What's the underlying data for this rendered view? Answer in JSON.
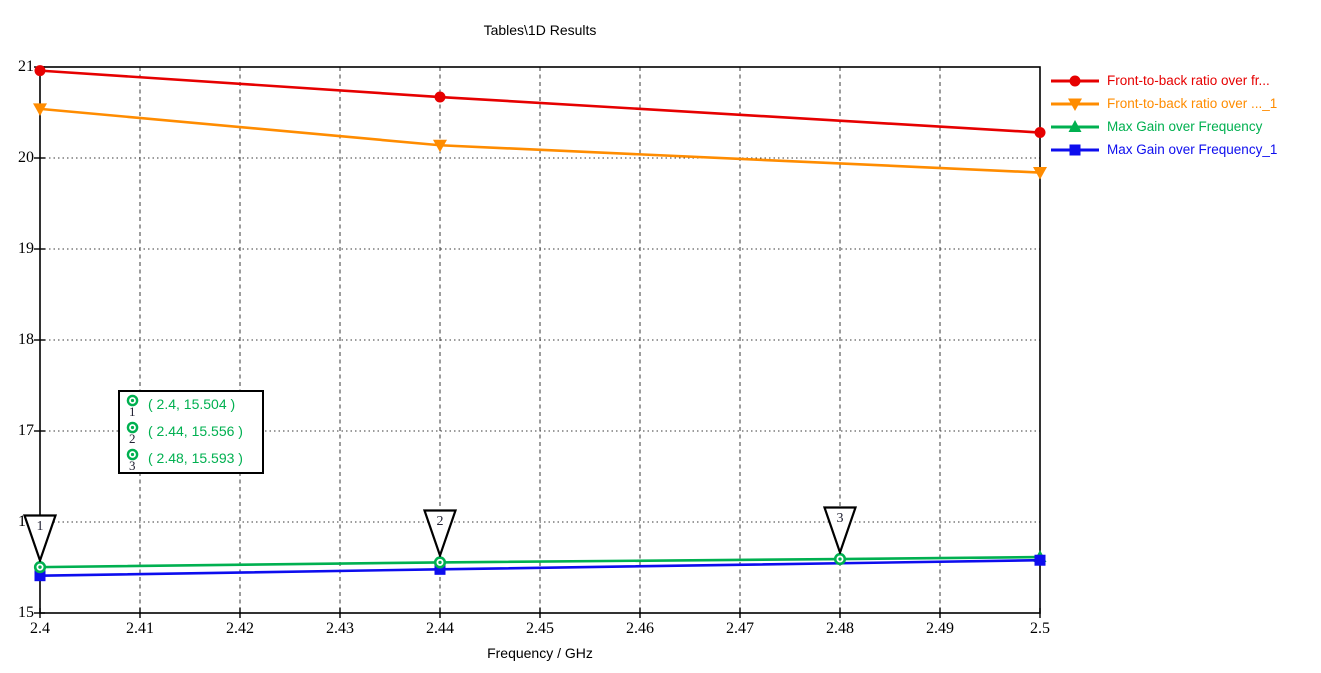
{
  "chart_data": {
    "type": "line",
    "title": "Tables\\1D Results",
    "xlabel": "Frequency / GHz",
    "ylabel": "",
    "xlim": [
      2.4,
      2.5
    ],
    "ylim": [
      15,
      21
    ],
    "x_ticks": [
      "2.4",
      "2.41",
      "2.42",
      "2.43",
      "2.44",
      "2.45",
      "2.46",
      "2.47",
      "2.48",
      "2.49",
      "2.5"
    ],
    "y_ticks": [
      "15",
      "16",
      "17",
      "18",
      "19",
      "20",
      "21"
    ],
    "grid": true,
    "legend_position": "right",
    "frame_color": "#000000",
    "grid_color": "#3a3a3a",
    "series": [
      {
        "name": "Front-to-back ratio over fr...",
        "color": "#e60000",
        "marker": "circle",
        "points": [
          [
            2.4,
            20.96
          ],
          [
            2.44,
            20.67
          ],
          [
            2.5,
            20.28
          ]
        ]
      },
      {
        "name": "Front-to-back ratio over ..._1",
        "color": "#ff8c00",
        "marker": "triangle-down",
        "points": [
          [
            2.4,
            20.54
          ],
          [
            2.44,
            20.14
          ],
          [
            2.5,
            19.84
          ]
        ]
      },
      {
        "name": "Max Gain over Frequency",
        "color": "#00b050",
        "marker": "triangle-up",
        "points": [
          [
            2.4,
            15.504
          ],
          [
            2.44,
            15.556
          ],
          [
            2.48,
            15.593
          ],
          [
            2.5,
            15.615
          ]
        ],
        "marker_points": [
          [
            2.5,
            15.615
          ]
        ]
      },
      {
        "name": "Max Gain over Frequency_1",
        "color": "#0d0dee",
        "marker": "square",
        "points": [
          [
            2.4,
            15.41
          ],
          [
            2.44,
            15.48
          ],
          [
            2.5,
            15.58
          ]
        ]
      }
    ],
    "curve_markers": [
      {
        "n": "1",
        "x": 2.4,
        "y": 15.504,
        "label": "( 2.4, 15.504 )"
      },
      {
        "n": "2",
        "x": 2.44,
        "y": 15.556,
        "label": "( 2.44, 15.556 )"
      },
      {
        "n": "3",
        "x": 2.48,
        "y": 15.593,
        "label": "( 2.48, 15.593 )"
      }
    ]
  }
}
